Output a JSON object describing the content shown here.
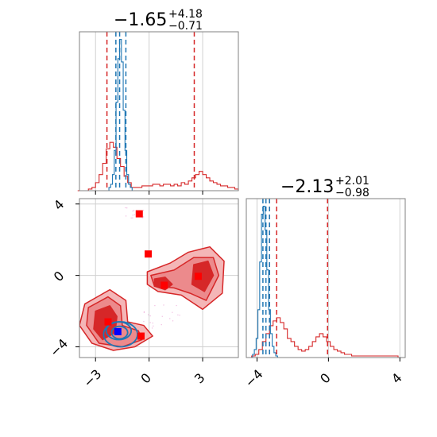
{
  "chart_data": [
    {
      "type": "histogram",
      "panel": "marginal-1",
      "title": {
        "main": "−1.65",
        "sup": "+4.18",
        "sub": "−0.71"
      },
      "xlim": [
        -3.9,
        5.0
      ],
      "x_ticks": [
        -3,
        0,
        3
      ],
      "x_tick_labels_shown": false,
      "grid": true,
      "series": [
        {
          "color": "#d62728",
          "bins_x": [
            -3.9,
            -3.7,
            -3.5,
            -3.3,
            -3.1,
            -2.9,
            -2.7,
            -2.5,
            -2.3,
            -2.1,
            -1.9,
            -1.7,
            -1.5,
            -1.3,
            -1.1,
            -0.9,
            -0.7,
            -0.5,
            -0.3,
            -0.1,
            0.1,
            0.3,
            0.5,
            0.7,
            0.9,
            1.1,
            1.3,
            1.5,
            1.7,
            1.9,
            2.1,
            2.3,
            2.5,
            2.7,
            2.9,
            3.1,
            3.3,
            3.5,
            3.7,
            3.9,
            4.1,
            4.3,
            4.5,
            4.7,
            4.9
          ],
          "density": [
            0,
            0,
            0,
            0.01,
            0.02,
            0.05,
            0.1,
            0.17,
            0.26,
            0.3,
            0.27,
            0.2,
            0.15,
            0.09,
            0.05,
            0.02,
            0.02,
            0.02,
            0.03,
            0.03,
            0.03,
            0.04,
            0.04,
            0.03,
            0.04,
            0.04,
            0.03,
            0.04,
            0.03,
            0.05,
            0.04,
            0.06,
            0.08,
            0.1,
            0.12,
            0.1,
            0.08,
            0.06,
            0.05,
            0.04,
            0.03,
            0.03,
            0.02,
            0.02,
            0.01
          ],
          "vlines": [
            -2.36,
            2.53
          ]
        },
        {
          "color": "#1f77b4",
          "bins_x": [
            -2.3,
            -2.2,
            -2.1,
            -2.0,
            -1.9,
            -1.8,
            -1.7,
            -1.6,
            -1.5,
            -1.4,
            -1.3,
            -1.2,
            -1.1,
            -1.0,
            -0.9
          ],
          "density": [
            0,
            0.02,
            0.04,
            0.1,
            0.25,
            0.55,
            0.82,
            0.94,
            0.8,
            0.5,
            0.25,
            0.1,
            0.04,
            0.02,
            0
          ],
          "vlines": [
            -1.86,
            -1.65,
            -1.3
          ]
        }
      ]
    },
    {
      "type": "histogram",
      "panel": "marginal-2",
      "title": {
        "main": "−2.13",
        "sup": "+2.01",
        "sub": "−0.98"
      },
      "xlim": [
        -4.6,
        4.3
      ],
      "x_ticks": [
        -4,
        0,
        4
      ],
      "x_tick_labels": [
        "−4",
        "0",
        "4"
      ],
      "grid": true,
      "series": [
        {
          "color": "#d62728",
          "bins_x": [
            -4.4,
            -4.2,
            -4.0,
            -3.8,
            -3.6,
            -3.4,
            -3.2,
            -3.0,
            -2.8,
            -2.6,
            -2.4,
            -2.2,
            -2.0,
            -1.8,
            -1.6,
            -1.4,
            -1.2,
            -1.0,
            -0.8,
            -0.6,
            -0.4,
            -0.2,
            0,
            0.2,
            0.4,
            0.6,
            0.8,
            1.0,
            1.2,
            1.4,
            1.6,
            1.8,
            2.0,
            2.2,
            2.4,
            2.6,
            2.8,
            3.0,
            3.2,
            3.4,
            3.6,
            3.8,
            4.0
          ],
          "density": [
            0,
            0.01,
            0.02,
            0.05,
            0.1,
            0.15,
            0.2,
            0.23,
            0.25,
            0.22,
            0.18,
            0.12,
            0.1,
            0.07,
            0.05,
            0.04,
            0.05,
            0.07,
            0.1,
            0.13,
            0.15,
            0.13,
            0.1,
            0.07,
            0.05,
            0.04,
            0.03,
            0.02,
            0.02,
            0.01,
            0.01,
            0.01,
            0.01,
            0.01,
            0.01,
            0.01,
            0.01,
            0.01,
            0.01,
            0.01,
            0.01,
            0.01,
            0
          ],
          "vlines": [
            -3.3,
            -2.9,
            -0.05
          ]
        },
        {
          "color": "#1f77b4",
          "bins_x": [
            -4.3,
            -4.2,
            -4.1,
            -4.0,
            -3.9,
            -3.8,
            -3.7,
            -3.6,
            -3.5,
            -3.4,
            -3.3,
            -3.2,
            -3.1,
            -3.0,
            -2.9,
            -2.8,
            -2.7
          ],
          "density": [
            0,
            0.02,
            0.05,
            0.12,
            0.3,
            0.6,
            0.9,
            0.95,
            0.8,
            0.55,
            0.3,
            0.15,
            0.07,
            0.03,
            0.01,
            0,
            0
          ],
          "vlines": [
            -3.67,
            -3.5,
            -3.3
          ]
        }
      ]
    },
    {
      "type": "scatter",
      "panel": "joint",
      "xlim": [
        -3.9,
        5.0
      ],
      "ylim": [
        -4.6,
        4.3
      ],
      "x_ticks": [
        -3,
        0,
        3
      ],
      "x_tick_labels": [
        "−3",
        "0",
        "3"
      ],
      "y_ticks": [
        -4,
        0,
        4
      ],
      "y_tick_labels": [
        "−4",
        "0",
        "4"
      ],
      "grid": true,
      "red_density_contours": [
        {
          "level": "outer",
          "polygons": [
            [
              [
                -3.6,
                -1.6
              ],
              [
                -2.2,
                -0.8
              ],
              [
                -1.3,
                -1.4
              ],
              [
                -1.2,
                -2.6
              ],
              [
                -0.3,
                -2.8
              ],
              [
                0.2,
                -3.4
              ],
              [
                -0.8,
                -4.0
              ],
              [
                -2.0,
                -4.2
              ],
              [
                -3.2,
                -3.8
              ],
              [
                -3.9,
                -2.8
              ]
            ],
            [
              [
                -0.1,
                0.2
              ],
              [
                1.2,
                0.7
              ],
              [
                2.2,
                1.3
              ],
              [
                3.4,
                1.6
              ],
              [
                4.2,
                0.8
              ],
              [
                4.1,
                -1.0
              ],
              [
                3.0,
                -1.9
              ],
              [
                1.8,
                -1.1
              ],
              [
                0.5,
                -0.9
              ],
              [
                -0.1,
                -0.5
              ]
            ]
          ]
        },
        {
          "level": "middle",
          "polygons": [
            [
              [
                -3.4,
                -1.8
              ],
              [
                -2.3,
                -1.2
              ],
              [
                -1.6,
                -1.7
              ],
              [
                -1.5,
                -2.8
              ],
              [
                -0.6,
                -3.1
              ],
              [
                -0.4,
                -3.6
              ],
              [
                -1.5,
                -4.0
              ],
              [
                -2.8,
                -3.8
              ],
              [
                -3.5,
                -2.8
              ]
            ],
            [
              [
                0.1,
                0.0
              ],
              [
                1.4,
                0.3
              ],
              [
                2.5,
                1.0
              ],
              [
                3.6,
                1.0
              ],
              [
                3.9,
                0.0
              ],
              [
                3.2,
                -1.4
              ],
              [
                2.3,
                -1.0
              ],
              [
                1.4,
                -0.7
              ],
              [
                0.3,
                -0.6
              ]
            ]
          ]
        },
        {
          "level": "inner",
          "polygons": [
            [
              [
                -3.0,
                -2.0
              ],
              [
                -2.2,
                -1.7
              ],
              [
                -1.8,
                -2.3
              ],
              [
                -1.9,
                -3.2
              ],
              [
                -2.6,
                -3.6
              ],
              [
                -3.1,
                -3.0
              ]
            ],
            [
              [
                0.3,
                -0.2
              ],
              [
                0.9,
                -0.1
              ],
              [
                1.3,
                -0.5
              ],
              [
                0.9,
                -0.8
              ],
              [
                0.3,
                -0.6
              ]
            ],
            [
              [
                2.5,
                0.6
              ],
              [
                3.3,
                0.8
              ],
              [
                3.6,
                0.0
              ],
              [
                3.1,
                -0.9
              ],
              [
                2.4,
                -0.5
              ]
            ]
          ]
        }
      ],
      "blue_density_contours": [
        {
          "center": [
            -1.65,
            -3.2
          ],
          "radius": [
            0.45,
            0.35
          ]
        },
        {
          "center": [
            -1.7,
            -3.1
          ],
          "radius": [
            0.7,
            0.5
          ]
        },
        {
          "center": [
            -1.6,
            -3.3
          ],
          "radius": [
            0.95,
            0.7
          ]
        }
      ],
      "red_points": [
        {
          "x": -0.55,
          "y": 3.45
        },
        {
          "x": -0.05,
          "y": 1.2
        },
        {
          "x": 2.75,
          "y": -0.05
        },
        {
          "x": 0.85,
          "y": -0.55
        },
        {
          "x": -2.3,
          "y": -2.6
        },
        {
          "x": -0.45,
          "y": -3.4
        }
      ],
      "blue_points": [
        {
          "x": -1.75,
          "y": -3.15
        }
      ],
      "scatter_cloud_color": "#e377c2"
    }
  ]
}
